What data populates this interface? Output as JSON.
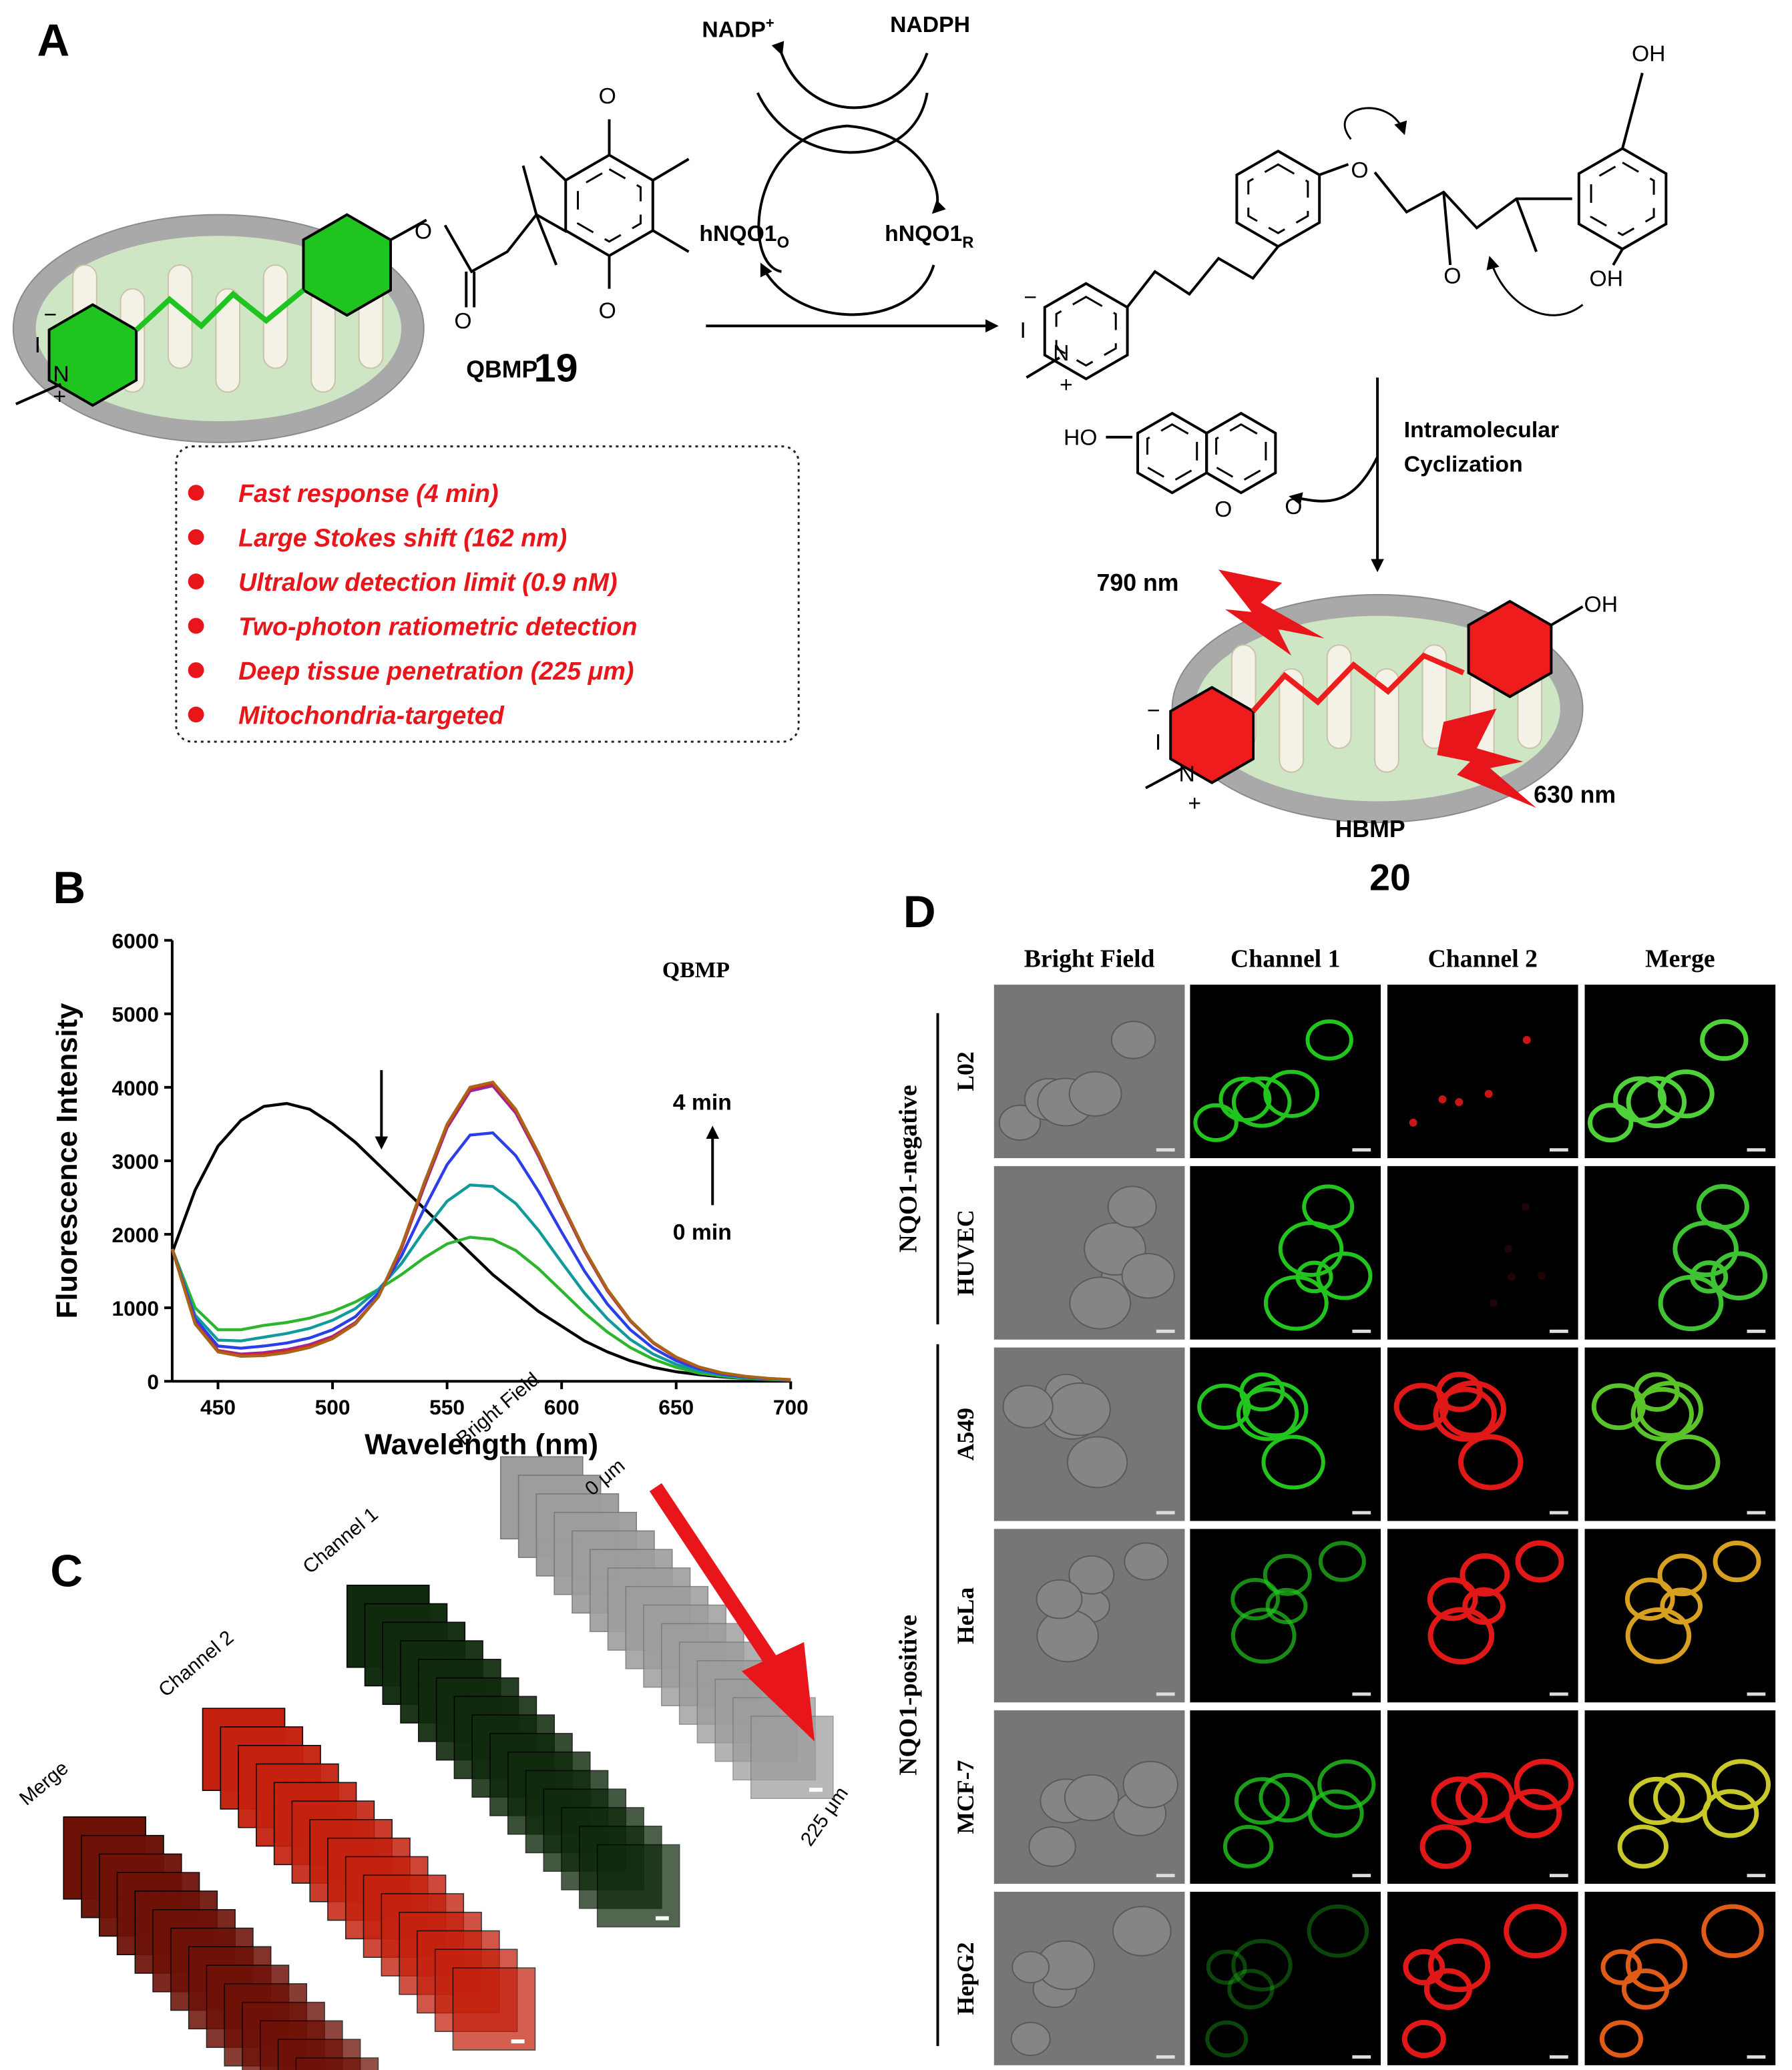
{
  "panel_a": {
    "label": "A",
    "nadp": {
      "base": "NADP",
      "sup": "+"
    },
    "nadph": "NADPH",
    "enzyme_ox": {
      "base": "hNQO1",
      "sub": "O"
    },
    "enzyme_red": {
      "base": "hNQO1",
      "sub": "R"
    },
    "probe_name": "QBMP",
    "probe_number": "19",
    "step_line1": "Intramolecular",
    "step_line2": "Cyclization",
    "excitation": "790 nm",
    "emission": "630 nm",
    "product_name": "HBMP",
    "product_number": "20",
    "atoms": [
      "I",
      "−",
      "N",
      "+",
      "O",
      "O",
      "O",
      "O",
      "I",
      "−",
      "N",
      "+",
      "O",
      "O",
      "OH",
      "OH",
      "HO",
      "O",
      "O",
      "OH",
      "I",
      "−",
      "N",
      "+"
    ],
    "features": [
      "Fast response (4 min)",
      "Large Stokes shift (162 nm)",
      "Ultralow detection limit (0.9 nM)",
      "Two-photon ratiometric detection",
      "Deep tissue penetration (225 μm)",
      "Mitochondria-targeted"
    ]
  },
  "chart_data": {
    "type": "line",
    "label": "B",
    "x_label": "Wavelength (nm)",
    "y_label": "Fluorescence Intensity",
    "annotations": [
      "QBMP",
      "4 min",
      "0 min"
    ],
    "x": [
      430,
      440,
      450,
      460,
      470,
      480,
      490,
      500,
      510,
      520,
      530,
      540,
      550,
      560,
      570,
      580,
      590,
      600,
      610,
      620,
      630,
      640,
      650,
      660,
      670,
      680,
      690,
      700
    ],
    "series": [
      {
        "color": "#000000",
        "values": [
          1750,
          2600,
          3200,
          3550,
          3740,
          3780,
          3700,
          3500,
          3250,
          2950,
          2650,
          2350,
          2050,
          1750,
          1450,
          1200,
          950,
          750,
          550,
          400,
          280,
          190,
          130,
          90,
          60,
          40,
          30,
          20
        ]
      },
      {
        "color": "#2db52d",
        "values": [
          1800,
          1000,
          700,
          700,
          760,
          800,
          860,
          950,
          1080,
          1250,
          1450,
          1680,
          1870,
          1960,
          1930,
          1780,
          1530,
          1230,
          930,
          670,
          460,
          300,
          190,
          110,
          70,
          40,
          25,
          15
        ]
      },
      {
        "color": "#12999c",
        "values": [
          1800,
          900,
          560,
          550,
          600,
          650,
          720,
          830,
          990,
          1250,
          1600,
          2050,
          2450,
          2670,
          2650,
          2420,
          2050,
          1620,
          1200,
          850,
          570,
          370,
          230,
          140,
          85,
          50,
          30,
          18
        ]
      },
      {
        "color": "#2a3fe8",
        "values": [
          1800,
          850,
          480,
          450,
          480,
          520,
          590,
          700,
          880,
          1200,
          1700,
          2350,
          2950,
          3350,
          3380,
          3070,
          2580,
          2030,
          1500,
          1050,
          700,
          450,
          280,
          170,
          100,
          60,
          35,
          20
        ]
      },
      {
        "color": "#8c2aa8",
        "values": [
          1800,
          800,
          420,
          370,
          390,
          430,
          500,
          610,
          800,
          1150,
          1800,
          2650,
          3450,
          3950,
          4020,
          3650,
          3060,
          2400,
          1770,
          1230,
          820,
          520,
          320,
          190,
          110,
          65,
          38,
          22
        ]
      },
      {
        "color": "#e0202a",
        "values": [
          1800,
          790,
          410,
          355,
          370,
          410,
          480,
          595,
          790,
          1150,
          1815,
          2680,
          3480,
          3980,
          4050,
          3680,
          3080,
          2415,
          1780,
          1240,
          825,
          525,
          325,
          192,
          112,
          66,
          39,
          22
        ]
      },
      {
        "color": "#a8651a",
        "values": [
          1800,
          780,
          400,
          340,
          350,
          390,
          460,
          580,
          780,
          1150,
          1830,
          2700,
          3500,
          4000,
          4070,
          3700,
          3100,
          2430,
          1790,
          1250,
          830,
          530,
          330,
          195,
          115,
          68,
          40,
          23
        ]
      }
    ],
    "xlim": [
      430,
      700
    ],
    "ylim": [
      0,
      6000
    ],
    "xticks": [
      450,
      500,
      550,
      600,
      650,
      700
    ],
    "yticks": [
      0,
      1000,
      2000,
      3000,
      4000,
      5000,
      6000
    ]
  },
  "panel_c": {
    "label": "C",
    "stacks": [
      "Merge",
      "Channel 2",
      "Channel 1",
      "Bright Field"
    ],
    "depth_start": "0 μm",
    "depth_end": "225 μm"
  },
  "panel_d": {
    "label": "D",
    "columns": [
      "Bright Field",
      "Channel 1",
      "Channel 2",
      "Merge"
    ],
    "rows": [
      "L02",
      "HUVEC",
      "A549",
      "HeLa",
      "MCF-7",
      "HepG2"
    ],
    "groups": [
      "NQO1-negative",
      "NQO1-positive"
    ]
  }
}
